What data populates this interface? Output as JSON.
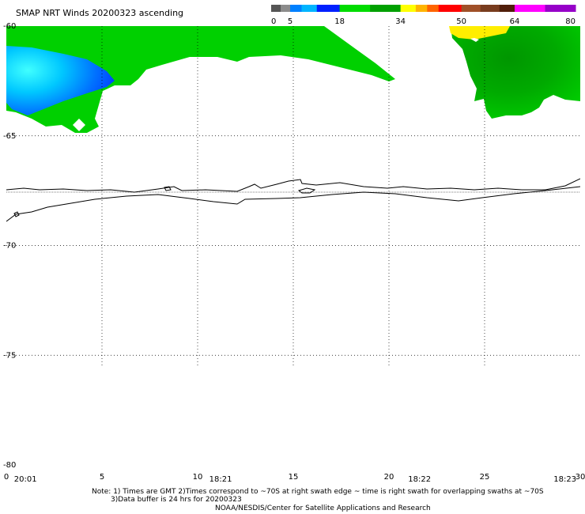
{
  "title": "SMAP NRT Winds 20200323 ascending",
  "colorbar": {
    "labels": [
      "0",
      "5",
      "18",
      "34",
      "50",
      "64",
      "80"
    ],
    "label_values": [
      0,
      5,
      18,
      34,
      50,
      64,
      80
    ],
    "range": [
      0,
      80
    ],
    "segments": [
      {
        "from": 0,
        "to": 2.5,
        "color": "#555555"
      },
      {
        "from": 2.5,
        "to": 5,
        "color": "#8c8c8c"
      },
      {
        "from": 5,
        "to": 8,
        "color": "#0080ff"
      },
      {
        "from": 8,
        "to": 12,
        "color": "#00b4ff"
      },
      {
        "from": 12,
        "to": 18,
        "color": "#0020ff"
      },
      {
        "from": 18,
        "to": 26,
        "color": "#00dc00"
      },
      {
        "from": 26,
        "to": 34,
        "color": "#00a000"
      },
      {
        "from": 34,
        "to": 38,
        "color": "#ffff00"
      },
      {
        "from": 38,
        "to": 41,
        "color": "#ffb400"
      },
      {
        "from": 41,
        "to": 44,
        "color": "#ff6400"
      },
      {
        "from": 44,
        "to": 50,
        "color": "#ff0000"
      },
      {
        "from": 50,
        "to": 55,
        "color": "#a05028"
      },
      {
        "from": 55,
        "to": 60,
        "color": "#783c1e"
      },
      {
        "from": 60,
        "to": 64,
        "color": "#501e0a"
      },
      {
        "from": 64,
        "to": 72,
        "color": "#ff00ff"
      },
      {
        "from": 72,
        "to": 80,
        "color": "#9600c8"
      }
    ]
  },
  "axes": {
    "lat_labels": [
      "-60",
      "-65",
      "-70",
      "-75",
      "-80"
    ],
    "lat_values": [
      -60,
      -65,
      -70,
      -75,
      -80
    ],
    "lon_labels": [
      "0",
      "5",
      "10",
      "15",
      "20",
      "25",
      "30"
    ],
    "lon_values": [
      0,
      5,
      10,
      15,
      20,
      25,
      30
    ],
    "lat_range": [
      -80,
      -60
    ],
    "lon_range": [
      0,
      30
    ],
    "grid": true
  },
  "times": [
    {
      "label": "20:01",
      "lon": 1
    },
    {
      "label": "18:21",
      "lon": 11.2
    },
    {
      "label": "18:22",
      "lon": 21.6
    },
    {
      "label": "18:23",
      "lon": 29.2
    }
  ],
  "notes": {
    "line1": "Note: 1) Times are GMT 2)Times correspond to ~70S at right swath edge ~ time is right swath for overlapping swaths at ~70S",
    "line2": "3)Data buffer is 24 hrs for 20200323",
    "line3": "NOAA/NESDIS/Center for Satellite Applications and Research"
  },
  "colors": {
    "wind_18_26": "#00dc00",
    "wind_26_34": "#00a000",
    "wind_12_18": "#0020ff",
    "wind_8_12": "#00b4ff",
    "wind_34_38": "#ffff00"
  }
}
